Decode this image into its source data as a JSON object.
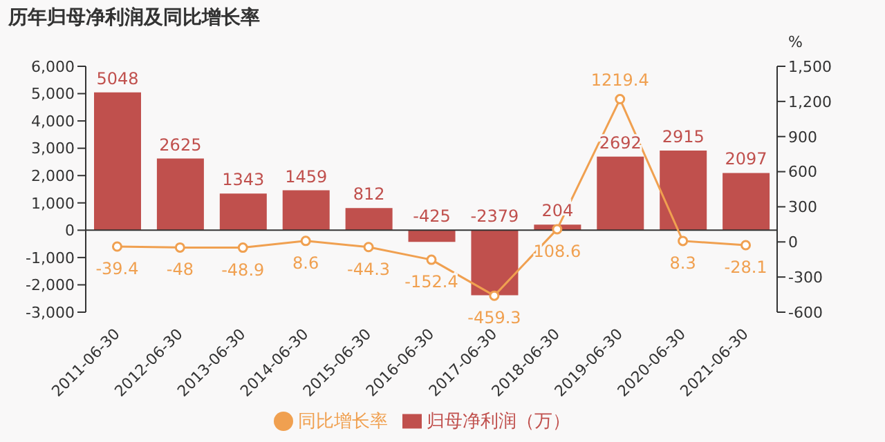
{
  "chart_data": {
    "type": "bar",
    "title": "历年归母净利润及同比增长率",
    "y2label": "%",
    "categories": [
      "2011-06-30",
      "2012-06-30",
      "2013-06-30",
      "2014-06-30",
      "2015-06-30",
      "2016-06-30",
      "2017-06-30",
      "2018-06-30",
      "2019-06-30",
      "2020-06-30",
      "2021-06-30"
    ],
    "series": [
      {
        "name": "归母净利润（万）",
        "color": "#c0504d",
        "values": [
          5048,
          2625,
          1343,
          1459,
          812,
          -425,
          -2379,
          204,
          2692,
          2915,
          2097
        ]
      },
      {
        "name": "同比增长率",
        "type": "line",
        "axis": "y2",
        "color": "#f0a050",
        "marker": "circle",
        "values": [
          -39.4,
          -48,
          -48.9,
          8.6,
          -44.3,
          -152.4,
          -459.3,
          108.6,
          1219.4,
          8.3,
          -28.1
        ]
      }
    ],
    "ylim": [
      -3000,
      6000
    ],
    "yticks": [
      {
        "value": -3000,
        "label": "-3,000"
      },
      {
        "value": -2000,
        "label": "-2,000"
      },
      {
        "value": -1000,
        "label": "-1,000"
      },
      0,
      {
        "value": 1000,
        "label": "1,000"
      },
      {
        "value": 2000,
        "label": "2,000"
      },
      {
        "value": 3000,
        "label": "3,000"
      },
      {
        "value": 4000,
        "label": "4,000"
      },
      {
        "value": 5000,
        "label": "5,000"
      },
      {
        "value": 6000,
        "label": "6,000"
      }
    ],
    "y2lim": [
      -600,
      1500
    ],
    "y2ticks": [
      -600,
      -300,
      0,
      300,
      600,
      900,
      {
        "value": 1200,
        "label": "1,200"
      },
      {
        "value": 1500,
        "label": "1,500"
      }
    ],
    "data_labels": true,
    "legend": "bottom"
  }
}
